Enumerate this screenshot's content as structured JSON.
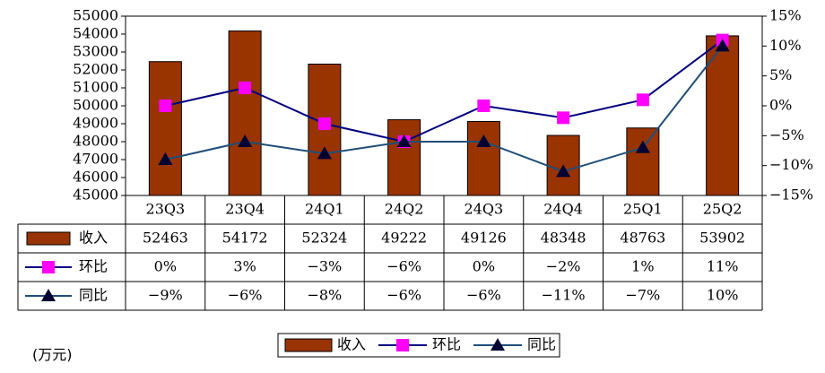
{
  "unit_label": "(万元)",
  "chart_data": {
    "type": "bar",
    "categories": [
      "23Q3",
      "23Q4",
      "24Q1",
      "24Q2",
      "24Q3",
      "24Q4",
      "25Q1",
      "25Q2"
    ],
    "series": [
      {
        "name": "收入",
        "kind": "bar",
        "axis": "left",
        "color": "#993300",
        "values": [
          52463,
          54172,
          52324,
          49222,
          49126,
          48348,
          48763,
          53902
        ]
      },
      {
        "name": "环比",
        "kind": "line",
        "axis": "right",
        "color": "#000080",
        "marker_color": "#ff00ff",
        "marker": "square",
        "values": [
          0,
          3,
          -3,
          -6,
          0,
          -2,
          1,
          11
        ]
      },
      {
        "name": "同比",
        "kind": "line",
        "axis": "right",
        "color": "#1f4e79",
        "marker_color": "#000033",
        "marker": "triangle",
        "values": [
          -9,
          -6,
          -8,
          -6,
          -6,
          -11,
          -7,
          10
        ]
      }
    ],
    "table_rows": [
      [
        "52463",
        "54172",
        "52324",
        "49222",
        "49126",
        "48348",
        "48763",
        "53902"
      ],
      [
        "0%",
        "3%",
        "−3%",
        "−6%",
        "0%",
        "−2%",
        "1%",
        "11%"
      ],
      [
        "−9%",
        "−6%",
        "−8%",
        "−6%",
        "−6%",
        "−11%",
        "−7%",
        "10%"
      ]
    ],
    "y_left": {
      "min": 45000,
      "max": 55000,
      "step": 1000,
      "ticks": [
        "45000",
        "46000",
        "47000",
        "48000",
        "49000",
        "50000",
        "51000",
        "52000",
        "53000",
        "54000",
        "55000"
      ]
    },
    "y_right": {
      "min": -15,
      "max": 15,
      "step": 5,
      "ticks": [
        "−15%",
        "−10%",
        "−5%",
        "0%",
        "5%",
        "10%",
        "15%"
      ]
    },
    "legend": [
      "收入",
      "环比",
      "同比"
    ],
    "legend_position": "bottom",
    "grid": false
  }
}
